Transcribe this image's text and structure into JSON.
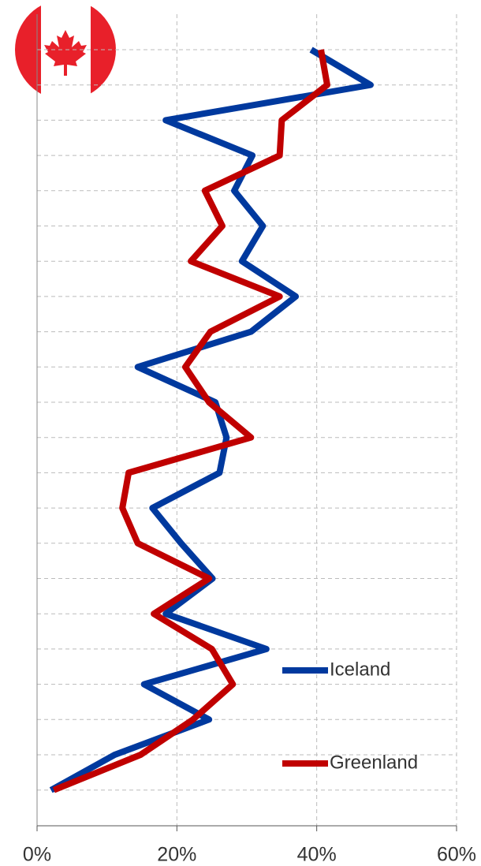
{
  "chart_data": {
    "type": "line",
    "categories": [
      null,
      null,
      null,
      null,
      null,
      null,
      null,
      null,
      null,
      null,
      null,
      null,
      null,
      null,
      null,
      null,
      null,
      null,
      null,
      null,
      null,
      null
    ],
    "series": [
      {
        "name": "Iceland",
        "color": "#00399e",
        "values": [
          39.2,
          47.7,
          18.4,
          30.8,
          28.2,
          32.3,
          29.3,
          37.0,
          30.6,
          14.4,
          25.5,
          27.1,
          26.1,
          16.5,
          20.6,
          25.1,
          18.4,
          32.8,
          15.3,
          24.6,
          11.1,
          2.0
        ]
      },
      {
        "name": "Greenland",
        "color": "#c00000",
        "values": [
          40.6,
          41.5,
          35.0,
          34.7,
          24.0,
          26.5,
          22.0,
          34.7,
          24.8,
          21.2,
          24.6,
          30.6,
          13.1,
          12.2,
          14.4,
          24.6,
          16.7,
          25.0,
          28.0,
          22.3,
          14.8,
          2.4
        ]
      }
    ],
    "xlim": [
      0,
      60
    ],
    "xticks": [
      {
        "value": 0,
        "label": "0%"
      },
      {
        "value": 20,
        "label": "20%"
      },
      {
        "value": 40,
        "label": "40%"
      },
      {
        "value": 60,
        "label": "60%"
      }
    ],
    "grid": true
  }
}
